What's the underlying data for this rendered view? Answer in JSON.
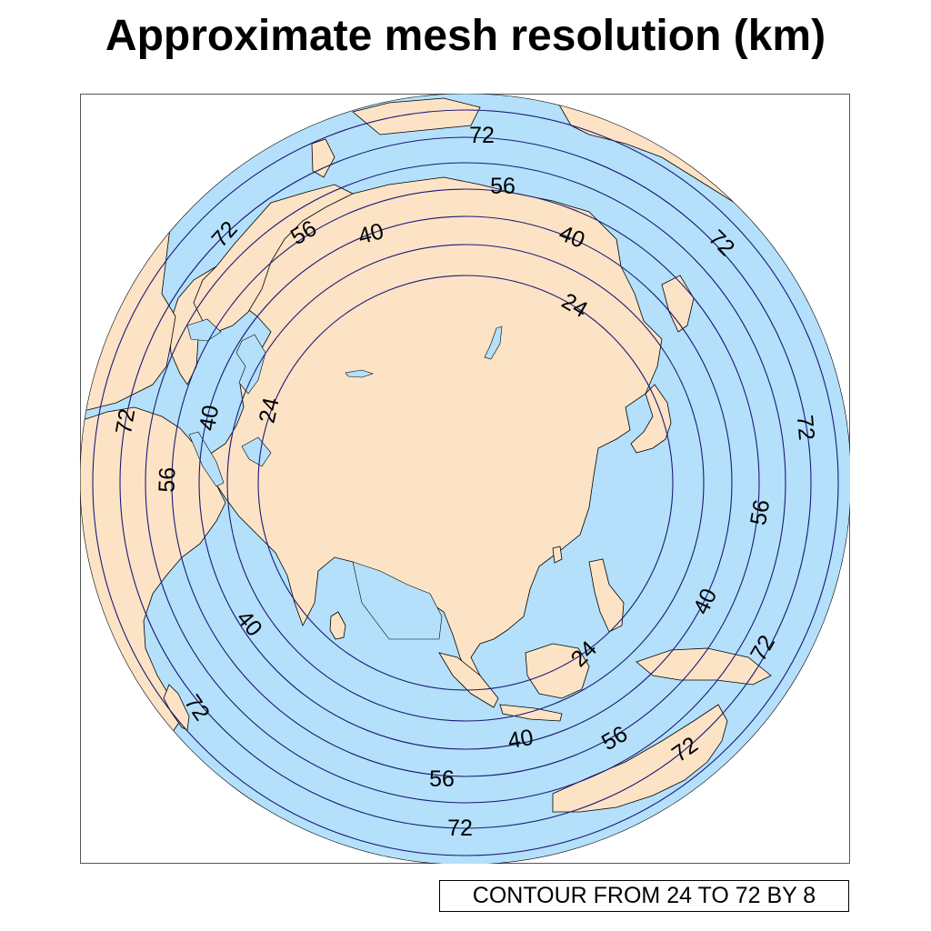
{
  "title": "Approximate mesh resolution (km)",
  "contour_info": "CONTOUR FROM 24 TO 72 BY 8",
  "colors": {
    "ocean": "#b4e0fb",
    "land": "#fde3c5",
    "contour": "#1a1a78",
    "coastline": "#000000"
  },
  "contour_levels": [
    24,
    32,
    40,
    48,
    56,
    64,
    72
  ],
  "contour_labels": [
    {
      "text": "72"
    },
    {
      "text": "56"
    },
    {
      "text": "72"
    },
    {
      "text": "56"
    },
    {
      "text": "40"
    },
    {
      "text": "40"
    },
    {
      "text": "72"
    },
    {
      "text": "24"
    },
    {
      "text": "72"
    },
    {
      "text": "40"
    },
    {
      "text": "24"
    },
    {
      "text": "72"
    },
    {
      "text": "56"
    },
    {
      "text": "56"
    },
    {
      "text": "40"
    },
    {
      "text": "40"
    },
    {
      "text": "24"
    },
    {
      "text": "72"
    },
    {
      "text": "72"
    },
    {
      "text": "40"
    },
    {
      "text": "56"
    },
    {
      "text": "72"
    },
    {
      "text": "56"
    },
    {
      "text": "72"
    }
  ]
}
